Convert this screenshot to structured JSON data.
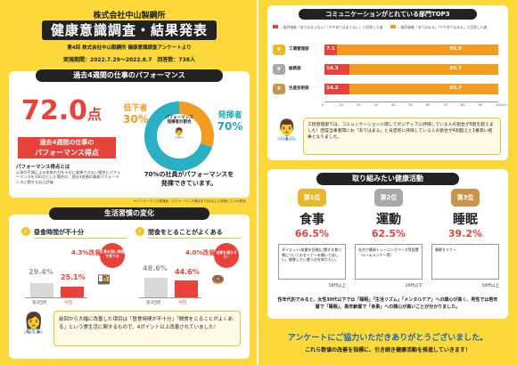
{
  "header": {
    "company": "株式会社中山製鋼所",
    "title": "健康意識調査・結果発表",
    "subtitle": "第4回 株式会社中山製鋼所 健康意識調査アンケートより",
    "period": "実施期間：2022.7.29〜2022.8.7　回答数：738人"
  },
  "performance": {
    "section_title": "過去4週間の仕事のパフォーマンス",
    "score": "72.0",
    "score_unit": "点",
    "score_caption1": "過去4週間の仕事の",
    "score_caption2": "パフォーマンス得点",
    "score_note_title": "パフォーマンス得点とは",
    "score_note": "心身の不調による本来の力を十分に発揮できない場合にパフォーマンスを100点とした場合の、過去4週間の業務パフォーマンスに関する自己評価",
    "donut_center1": "パフォーマンス",
    "donut_center2": "発揮者の割合",
    "low_label": "低下者",
    "low_pct": "30%",
    "high_label": "発揮者",
    "high_pct": "70%",
    "note_line1": "70%の社員がパフォーマンスを",
    "note_line2": "発揮できています。",
    "footnote": "※パフォーマンス発揮者：パフォーマンス得点を70点以上と評価した人の割合"
  },
  "habits": {
    "section_title": "生活習慣の変化",
    "left_title": "昼食時間が不十分",
    "left_badge": "昼食を短い時間で食べる",
    "left_change": "4.3%改善!",
    "left_prev_label": "第3回目",
    "left_prev_val": "29.4%",
    "left_cur_label": "今回",
    "left_cur_val": "25.1%",
    "right_title": "間食をとることがよくある",
    "right_badge": "間食を減らそう！",
    "right_change": "4.0%改善!",
    "right_prev_label": "第3回目",
    "right_prev_val": "48.6%",
    "right_cur_label": "今回",
    "right_cur_val": "44.6%",
    "summary": "前回から大幅に改善した項目は「昼食時間が不十分」「間食をとることがよくある」という食生活に関するもので、4ポイント以上改善されていました！"
  },
  "chart_data": [
    {
      "type": "bar",
      "title": "生活習慣の変化（昼食時間が不十分）",
      "categories": [
        "第3回目",
        "今回"
      ],
      "values": [
        29.4,
        25.1
      ]
    },
    {
      "type": "bar",
      "title": "生活習慣の変化（間食をとることがよくある）",
      "categories": [
        "第3回目",
        "今回"
      ],
      "values": [
        48.6,
        44.6
      ]
    },
    {
      "type": "bar",
      "title": "コミュニケーションがとれている部門TOP3",
      "categories": [
        "工場管理部",
        "総務部",
        "生産技術部"
      ],
      "series": [
        {
          "name": "あてはまらない・やや当てはまらない",
          "values": [
            7.1,
            14.3,
            14.3
          ]
        },
        {
          "name": "あてはまる・ややあてはまる",
          "values": [
            92.9,
            85.7,
            85.7
          ]
        }
      ]
    },
    {
      "type": "bar",
      "title": "取り組みたい健康活動",
      "categories": [
        "食事",
        "運動",
        "睡眠"
      ],
      "values": [
        66.5,
        62.5,
        39.2
      ]
    }
  ],
  "communication": {
    "section_title": "コミュニケーションがとれている部門TOP3",
    "legend_a": "…既評価者「あてはまらない」「ややあてはまらない」と回答した者",
    "legend_b": "…被評価者「あてはまる」「ややあてはまる」と回答した者",
    "rows": [
      {
        "rank": "1",
        "dept": "工場管理部",
        "low": "7.1",
        "high": "92.9"
      },
      {
        "rank": "2",
        "dept": "総務部",
        "low": "14.3",
        "high": "85.7"
      },
      {
        "rank": "3",
        "dept": "生産技術部",
        "low": "14.3",
        "high": "85.7"
      }
    ],
    "axis": [
      "0",
      "10",
      "20",
      "30",
      "40",
      "50",
      "60",
      "70",
      "80",
      "90",
      "100(%)"
    ],
    "comment": "工程管理部では、コミュニケーションに関してポジティブに評価している人の割合が9割を超えました！回答当事者間にお「あてはまる」と肯定的に評価している人の割合が4割超えと1番高い結果となりました。"
  },
  "activities": {
    "section_title": "取り組みたい健康活動",
    "items": [
      {
        "rank": "第1位",
        "name": "食事",
        "pct": "66.5%",
        "desc": "ダイエット(体重を目標)に関する食べ物についてのセミナーを開いてほしい。間食したい食べ方を知りたい。",
        "age": "50代以上",
        "color": "#e8b82c"
      },
      {
        "rank": "第2位",
        "name": "運動",
        "pct": "62.5%",
        "desc": "社内で簡易トレーニングベース等設置（ルームランナー等）",
        "age": "20代以下",
        "color": "#a8a8a8"
      },
      {
        "rank": "第3位",
        "name": "睡眠",
        "pct": "39.2%",
        "desc": "睡眠セミナー",
        "age": "50代以上",
        "color": "#c9954a"
      }
    ],
    "summary": "性年代別でみると、女性30代以下では「睡眠」「生活リズム」「メンタルケア」への関心が高く、男性では若年層で「睡眠」、高年齢層で「食事」への関心が高いことが分かりました。"
  },
  "thanks": {
    "line1": "アンケートにご協力いただきありがとうございました。",
    "line2": "これら数値の改善を指標に、引き続き健康活動を推進していきます！"
  },
  "colors": {
    "yellow": "#fdd83a",
    "red": "#e8423b",
    "teal": "#1fa7b8",
    "orange": "#f39c21"
  }
}
